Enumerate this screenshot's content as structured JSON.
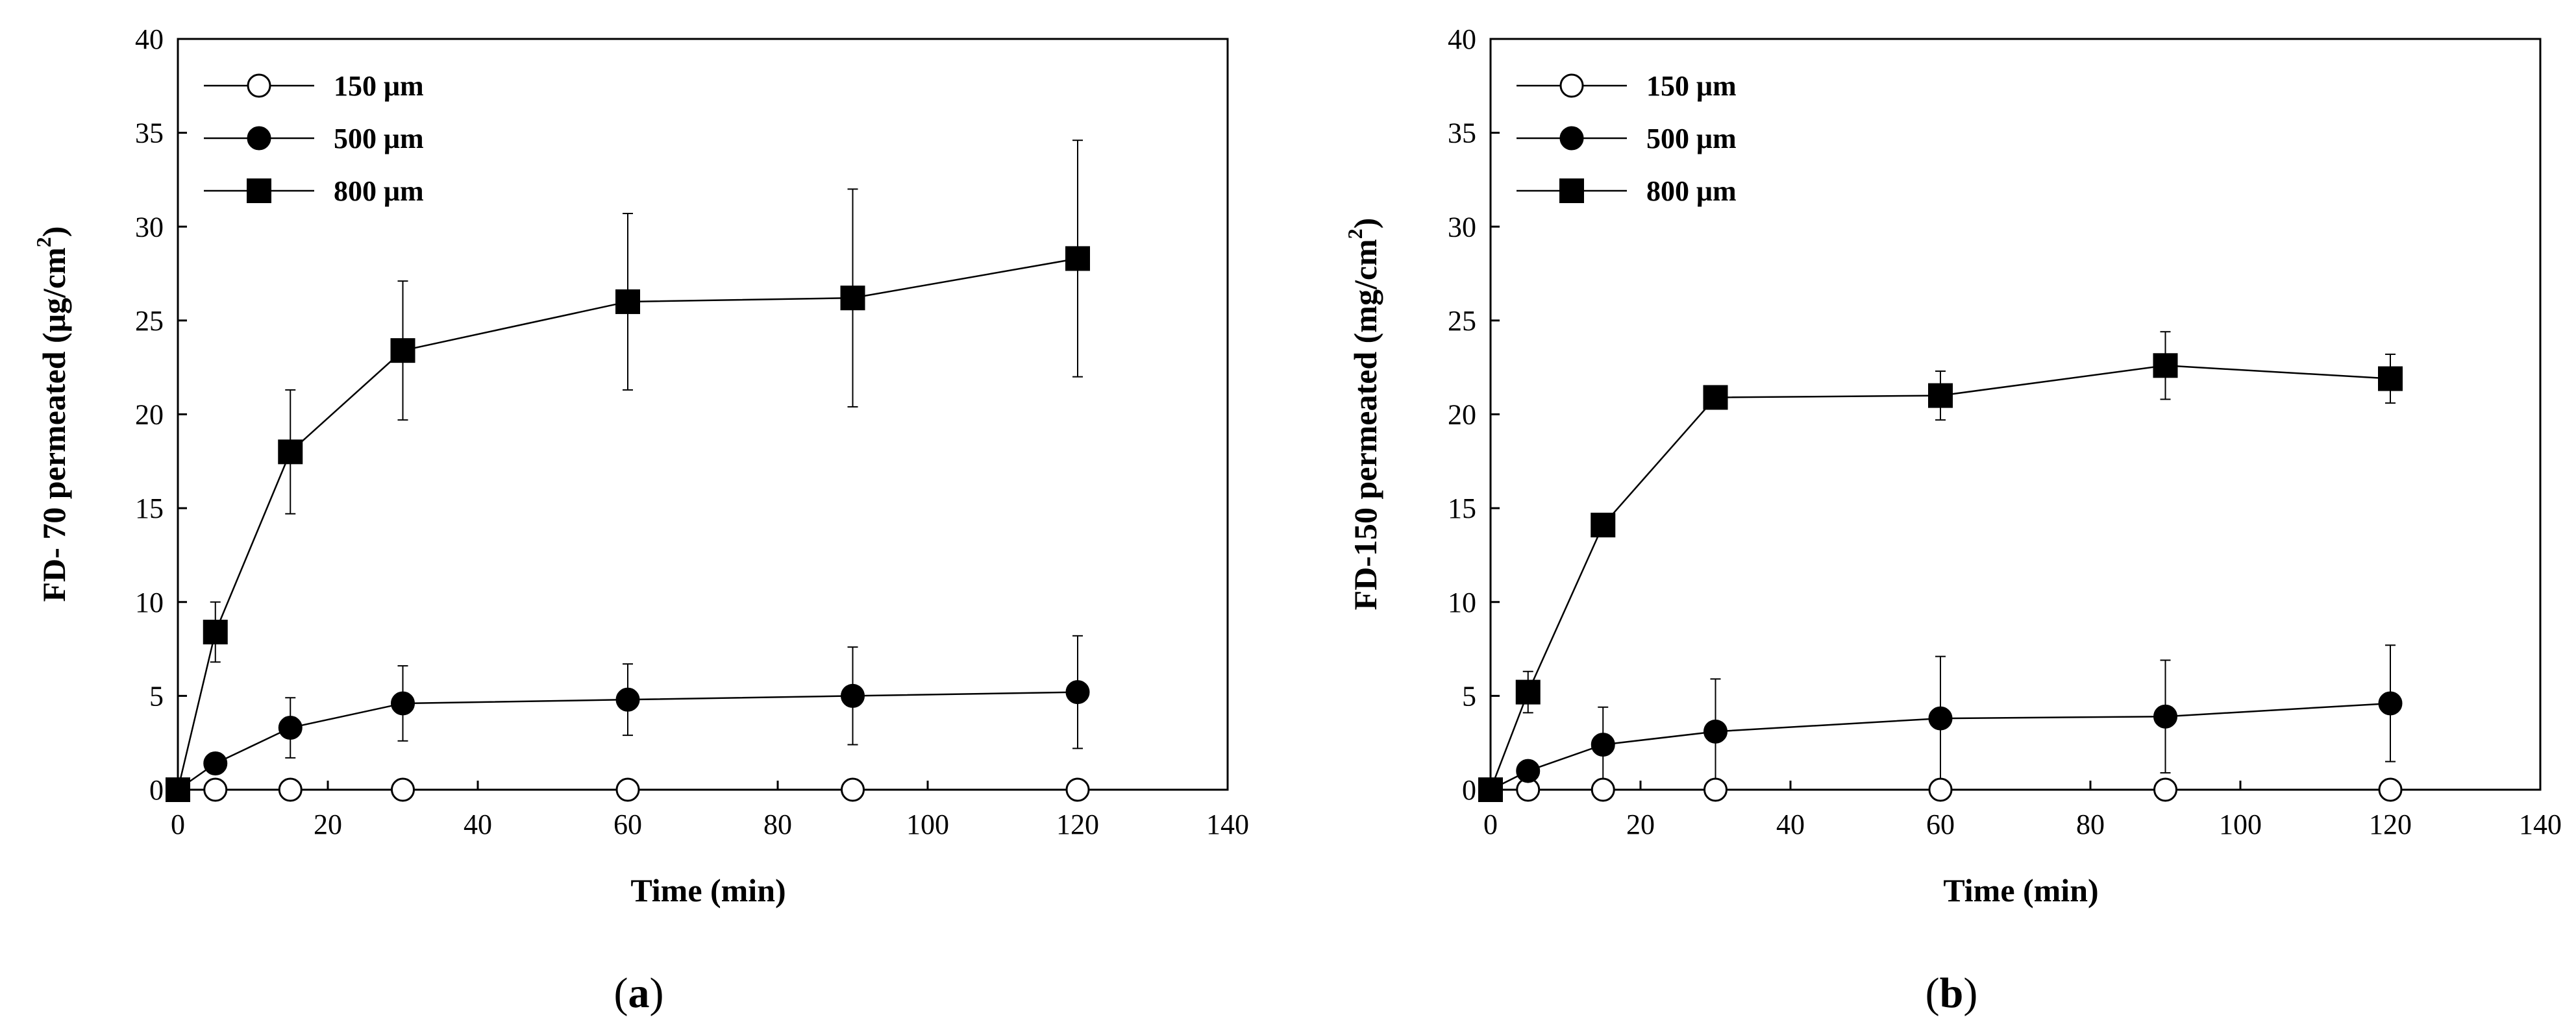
{
  "chart_data": [
    {
      "type": "line",
      "panel_label": "a",
      "xlabel": "Time (min)",
      "ylabel_parts": {
        "main": "FD- 70 permeated (μg/cm",
        "sup": "2",
        "end": ")"
      },
      "xlim": [
        0,
        140
      ],
      "ylim": [
        0,
        40
      ],
      "xticks": [
        0,
        20,
        40,
        60,
        80,
        100,
        120,
        140
      ],
      "yticks": [
        0,
        5,
        10,
        15,
        20,
        25,
        30,
        35,
        40
      ],
      "legend_position": "top-left",
      "series": [
        {
          "name": "150 μm",
          "marker": "open-circle",
          "x": [
            0,
            5,
            15,
            30,
            60,
            90,
            120
          ],
          "y": [
            0,
            0,
            0,
            0,
            0,
            0,
            0
          ],
          "err": [
            0,
            0,
            0,
            0,
            0,
            0,
            0
          ]
        },
        {
          "name": "500 μm",
          "marker": "filled-circle",
          "x": [
            0,
            5,
            15,
            30,
            60,
            90,
            120
          ],
          "y": [
            0,
            1.4,
            3.3,
            4.6,
            4.8,
            5.0,
            5.2
          ],
          "err": [
            0,
            0,
            1.6,
            2.0,
            1.9,
            2.6,
            3.0
          ]
        },
        {
          "name": "800 μm",
          "marker": "filled-square",
          "x": [
            0,
            5,
            15,
            30,
            60,
            90,
            120
          ],
          "y": [
            0,
            8.4,
            18.0,
            23.4,
            26.0,
            26.2,
            28.3
          ],
          "err": [
            0,
            1.6,
            3.3,
            3.7,
            4.7,
            5.8,
            6.3
          ]
        }
      ]
    },
    {
      "type": "line",
      "panel_label": "b",
      "xlabel": "Time (min)",
      "ylabel_parts": {
        "main": "FD-150 permeated (mg/cm",
        "sup": "2",
        "end": ")"
      },
      "xlim": [
        0,
        140
      ],
      "ylim": [
        0,
        40
      ],
      "xticks": [
        0,
        20,
        40,
        60,
        80,
        100,
        120,
        140
      ],
      "yticks": [
        0,
        5,
        10,
        15,
        20,
        25,
        30,
        35,
        40
      ],
      "legend_position": "top-left",
      "series": [
        {
          "name": "150 μm",
          "marker": "open-circle",
          "x": [
            0,
            5,
            15,
            30,
            60,
            90,
            120
          ],
          "y": [
            0,
            0,
            0,
            0,
            0,
            0,
            0
          ],
          "err": [
            0,
            0,
            0,
            0,
            0,
            0,
            0
          ]
        },
        {
          "name": "500 μm",
          "marker": "filled-circle",
          "x": [
            0,
            5,
            15,
            30,
            60,
            90,
            120
          ],
          "y": [
            0,
            1.0,
            2.4,
            3.1,
            3.8,
            3.9,
            4.6
          ],
          "err": [
            0,
            0,
            2.0,
            2.8,
            3.3,
            3.0,
            3.1
          ]
        },
        {
          "name": "800 μm",
          "marker": "filled-square",
          "x": [
            0,
            5,
            15,
            30,
            60,
            90,
            120
          ],
          "y": [
            0,
            5.2,
            14.1,
            20.9,
            21.0,
            22.6,
            21.9
          ],
          "err": [
            0,
            1.1,
            0,
            0,
            1.3,
            1.8,
            1.3
          ]
        }
      ]
    }
  ]
}
